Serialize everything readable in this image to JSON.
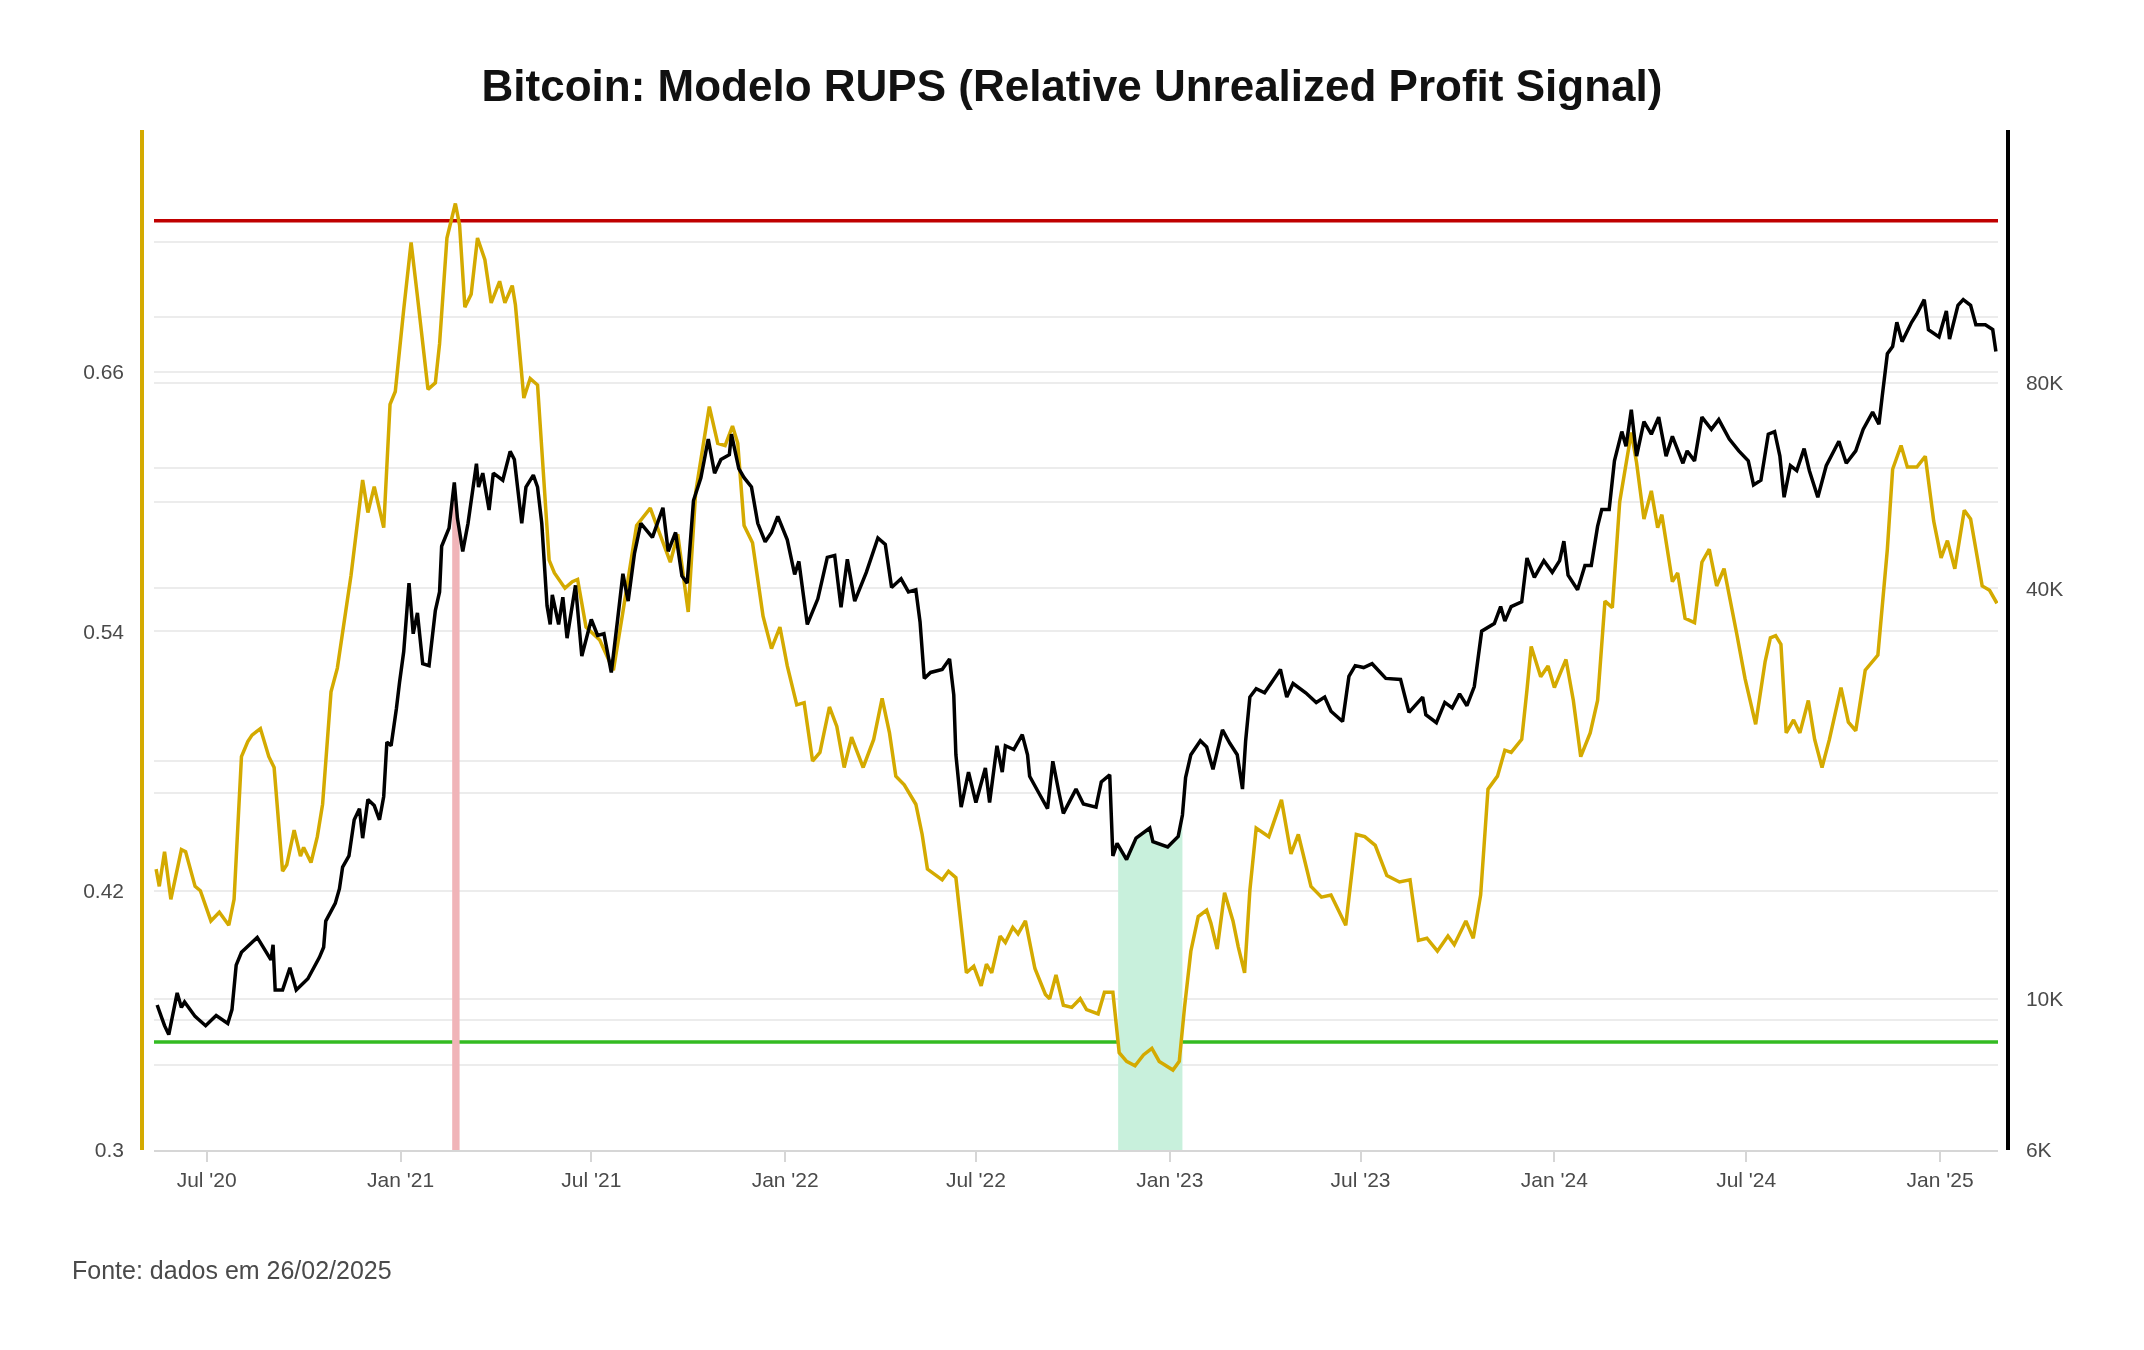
{
  "chart_data": {
    "type": "line",
    "title": "Bitcoin: Modelo RUPS (Relative Unrealized Profit Signal)",
    "annotations": [
      "Fonte: dados em 26/02/2025"
    ],
    "xlim": [
      "2020-05-12",
      "2025-02-25"
    ],
    "xticks": [
      {
        "value": "2020-07-01",
        "label": "Jul '20"
      },
      {
        "value": "2021-01-01",
        "label": "Jan '21"
      },
      {
        "value": "2021-07-01",
        "label": "Jul '21"
      },
      {
        "value": "2022-01-01",
        "label": "Jan '22"
      },
      {
        "value": "2022-07-01",
        "label": "Jul '22"
      },
      {
        "value": "2023-01-01",
        "label": "Jan '23"
      },
      {
        "value": "2023-07-01",
        "label": "Jul '23"
      },
      {
        "value": "2024-01-01",
        "label": "Jan '24"
      },
      {
        "value": "2024-07-01",
        "label": "Jul '24"
      },
      {
        "value": "2025-01-01",
        "label": "Jan '25"
      }
    ],
    "ylim": [
      0.3,
      0.772
    ],
    "yticks": [
      0.3,
      {
        "value": 0.36,
        "label": null
      },
      0.42,
      {
        "value": 0.48,
        "label": null
      },
      0.54,
      {
        "value": 0.6,
        "label": null
      },
      0.66,
      {
        "value": 0.72,
        "label": null
      }
    ],
    "y2lim": [
      6000,
      188000
    ],
    "y2ticks": [
      {
        "value": 6000,
        "label": "6K"
      },
      {
        "value": 8000,
        "label": null
      },
      {
        "value": 10000,
        "label": "10K"
      },
      {
        "value": 20000,
        "label": null
      },
      {
        "value": 40000,
        "label": "40K"
      },
      {
        "value": 60000,
        "label": null
      },
      {
        "value": 80000,
        "label": "80K"
      },
      {
        "value": 100000,
        "label": null
      }
    ],
    "log": "y2",
    "grid": "y",
    "series": [
      {
        "color": "#d4aa00",
        "x": [
          "2020-05-14",
          "2020-05-17",
          "2020-05-22",
          "2020-05-28",
          "2020-06-07",
          "2020-06-11",
          "2020-06-20",
          "2020-06-25",
          "2020-07-05",
          "2020-07-13",
          "2020-07-22",
          "2020-07-27",
          "2020-08-03",
          "2020-08-09",
          "2020-08-13",
          "2020-08-21",
          "2020-08-29",
          "2020-09-03",
          "2020-09-11",
          "2020-09-15",
          "2020-09-22",
          "2020-09-28",
          "2020-10-01",
          "2020-10-08",
          "2020-10-14",
          "2020-10-19",
          "2020-10-27",
          "2020-11-02",
          "2020-11-15",
          "2020-11-26",
          "2020-12-01",
          "2020-12-07",
          "2020-12-16",
          "2020-12-22",
          "2020-12-27",
          "2021-01-04",
          "2021-01-11",
          "2021-01-17",
          "2021-01-27",
          "2021-02-03",
          "2021-02-07",
          "2021-02-14",
          "2021-02-22",
          "2021-02-26",
          "2021-03-03",
          "2021-03-09",
          "2021-03-15",
          "2021-03-22",
          "2021-03-28",
          "2021-04-05",
          "2021-04-10",
          "2021-04-17",
          "2021-04-20",
          "2021-04-28",
          "2021-05-04",
          "2021-05-11",
          "2021-05-22",
          "2021-05-27",
          "2021-06-06",
          "2021-06-13",
          "2021-06-18",
          "2021-06-26",
          "2021-07-09",
          "2021-07-22",
          "2021-07-31",
          "2021-08-13",
          "2021-08-26",
          "2021-09-01",
          "2021-09-14",
          "2021-09-21",
          "2021-10-01",
          "2021-10-08",
          "2021-10-21",
          "2021-10-29",
          "2021-11-05",
          "2021-11-12",
          "2021-11-17",
          "2021-11-23",
          "2021-12-01",
          "2021-12-11",
          "2021-12-19",
          "2021-12-27",
          "2022-01-03",
          "2022-01-12",
          "2022-01-19",
          "2022-01-27",
          "2022-02-03",
          "2022-02-12",
          "2022-02-19",
          "2022-02-26",
          "2022-03-05",
          "2022-03-16",
          "2022-03-26",
          "2022-04-03",
          "2022-04-10",
          "2022-04-16",
          "2022-04-24",
          "2022-05-05",
          "2022-05-11",
          "2022-05-16",
          "2022-05-30",
          "2022-06-05",
          "2022-06-12",
          "2022-06-22",
          "2022-06-29",
          "2022-07-06",
          "2022-07-11",
          "2022-07-16",
          "2022-07-24",
          "2022-07-29",
          "2022-08-05",
          "2022-08-10",
          "2022-08-17",
          "2022-08-26",
          "2022-09-05",
          "2022-09-09",
          "2022-09-15",
          "2022-09-22",
          "2022-09-30",
          "2022-10-08",
          "2022-10-14",
          "2022-10-25",
          "2022-10-31",
          "2022-11-08",
          "2022-11-14",
          "2022-11-21",
          "2022-11-29",
          "2022-12-07",
          "2022-12-15",
          "2022-12-22",
          "2023-01-04",
          "2023-01-10",
          "2023-01-15",
          "2023-01-21",
          "2023-01-28",
          "2023-02-05",
          "2023-02-09",
          "2023-02-15",
          "2023-02-22",
          "2023-03-02",
          "2023-03-07",
          "2023-03-13",
          "2023-03-18",
          "2023-03-24",
          "2023-04-05",
          "2023-04-17",
          "2023-04-26",
          "2023-05-03",
          "2023-05-15",
          "2023-05-25",
          "2023-06-03",
          "2023-06-17",
          "2023-06-27",
          "2023-07-05",
          "2023-07-15",
          "2023-07-26",
          "2023-08-07",
          "2023-08-17",
          "2023-08-25",
          "2023-09-02",
          "2023-09-12",
          "2023-09-22",
          "2023-09-28",
          "2023-10-09",
          "2023-10-16",
          "2023-10-23",
          "2023-10-30",
          "2023-11-08",
          "2023-11-15",
          "2023-11-21",
          "2023-12-01",
          "2023-12-06",
          "2023-12-10",
          "2023-12-19",
          "2023-12-26",
          "2024-01-01",
          "2024-01-12",
          "2024-01-19",
          "2024-01-26",
          "2024-02-04",
          "2024-02-11",
          "2024-02-18",
          "2024-02-25",
          "2024-03-03",
          "2024-03-14",
          "2024-03-19",
          "2024-03-26",
          "2024-04-02",
          "2024-04-08",
          "2024-04-12",
          "2024-04-22",
          "2024-04-27",
          "2024-05-04",
          "2024-05-13",
          "2024-05-20",
          "2024-05-27",
          "2024-06-03",
          "2024-06-10",
          "2024-06-22",
          "2024-06-30",
          "2024-07-10",
          "2024-07-19",
          "2024-07-24",
          "2024-07-29",
          "2024-08-03",
          "2024-08-08",
          "2024-08-15",
          "2024-08-21",
          "2024-08-29",
          "2024-09-04",
          "2024-09-11",
          "2024-09-18",
          "2024-09-29",
          "2024-10-06",
          "2024-10-13",
          "2024-10-22",
          "2024-11-03",
          "2024-11-12",
          "2024-11-17",
          "2024-11-25",
          "2024-12-01",
          "2024-12-10",
          "2024-12-18",
          "2024-12-26",
          "2025-01-02",
          "2025-01-08",
          "2025-01-15",
          "2025-01-24",
          "2025-01-30",
          "2025-02-04",
          "2025-02-10",
          "2025-02-17",
          "2025-02-24"
        ],
        "values": [
          0.43,
          0.422,
          0.438,
          0.416,
          0.439,
          0.438,
          0.422,
          0.42,
          0.406,
          0.41,
          0.404,
          0.416,
          0.482,
          0.489,
          0.492,
          0.495,
          0.482,
          0.477,
          0.429,
          0.432,
          0.448,
          0.436,
          0.44,
          0.433,
          0.445,
          0.46,
          0.512,
          0.523,
          0.566,
          0.61,
          0.595,
          0.607,
          0.588,
          0.645,
          0.651,
          0.689,
          0.72,
          0.695,
          0.652,
          0.655,
          0.673,
          0.722,
          0.738,
          0.728,
          0.69,
          0.696,
          0.722,
          0.712,
          0.692,
          0.702,
          0.692,
          0.7,
          0.691,
          0.648,
          0.657,
          0.654,
          0.573,
          0.567,
          0.56,
          0.563,
          0.564,
          0.542,
          0.536,
          0.522,
          0.549,
          0.589,
          0.597,
          0.589,
          0.572,
          0.585,
          0.549,
          0.604,
          0.644,
          0.627,
          0.626,
          0.635,
          0.627,
          0.589,
          0.581,
          0.547,
          0.532,
          0.542,
          0.524,
          0.506,
          0.507,
          0.48,
          0.484,
          0.505,
          0.496,
          0.477,
          0.491,
          0.477,
          0.49,
          0.509,
          0.493,
          0.473,
          0.469,
          0.46,
          0.446,
          0.43,
          0.425,
          0.429,
          0.426,
          0.382,
          0.385,
          0.376,
          0.386,
          0.382,
          0.399,
          0.396,
          0.403,
          0.4,
          0.406,
          0.384,
          0.372,
          0.37,
          0.381,
          0.367,
          0.366,
          0.37,
          0.365,
          0.363,
          0.373,
          0.373,
          0.345,
          0.341,
          0.339,
          0.344,
          0.347,
          0.341,
          0.337,
          0.341,
          0.366,
          0.392,
          0.408,
          0.411,
          0.405,
          0.393,
          0.419,
          0.406,
          0.394,
          0.382,
          0.42,
          0.449,
          0.445,
          0.462,
          0.437,
          0.446,
          0.422,
          0.417,
          0.418,
          0.404,
          0.446,
          0.445,
          0.441,
          0.427,
          0.424,
          0.425,
          0.397,
          0.398,
          0.392,
          0.399,
          0.395,
          0.406,
          0.398,
          0.418,
          0.467,
          0.473,
          0.485,
          0.484,
          0.49,
          0.513,
          0.533,
          0.519,
          0.524,
          0.514,
          0.527,
          0.508,
          0.482,
          0.493,
          0.508,
          0.554,
          0.551,
          0.6,
          0.632,
          0.618,
          0.592,
          0.605,
          0.588,
          0.594,
          0.563,
          0.567,
          0.546,
          0.544,
          0.572,
          0.578,
          0.561,
          0.569,
          0.539,
          0.518,
          0.497,
          0.526,
          0.537,
          0.538,
          0.534,
          0.493,
          0.499,
          0.493,
          0.508,
          0.49,
          0.477,
          0.49,
          0.514,
          0.498,
          0.494,
          0.522,
          0.529,
          0.578,
          0.615,
          0.626,
          0.616,
          0.616,
          0.621,
          0.591,
          0.574,
          0.582,
          0.569,
          0.596,
          0.592,
          0.578,
          0.561,
          0.559,
          0.553
        ]
      },
      {
        "color": "#000000",
        "axis": "y2",
        "x": [
          "2020-05-15",
          "2020-05-22",
          "2020-05-26",
          "2020-06-03",
          "2020-06-07",
          "2020-06-10",
          "2020-06-20",
          "2020-06-30",
          "2020-07-10",
          "2020-07-21",
          "2020-07-25",
          "2020-07-29",
          "2020-08-03",
          "2020-08-18",
          "2020-08-31",
          "2020-09-02",
          "2020-09-04",
          "2020-09-11",
          "2020-09-18",
          "2020-09-24",
          "2020-10-05",
          "2020-10-16",
          "2020-10-20",
          "2020-10-22",
          "2020-10-31",
          "2020-11-04",
          "2020-11-07",
          "2020-11-13",
          "2020-11-18",
          "2020-11-23",
          "2020-11-26",
          "2020-12-01",
          "2020-12-07",
          "2020-12-12",
          "2020-12-16",
          "2020-12-19",
          "2020-12-23",
          "2020-12-28",
          "2020-12-31",
          "2021-01-04",
          "2021-01-09",
          "2021-01-13",
          "2021-01-17",
          "2021-01-22",
          "2021-01-28",
          "2021-02-03",
          "2021-02-07",
          "2021-02-09",
          "2021-02-16",
          "2021-02-21",
          "2021-02-24",
          "2021-03-01",
          "2021-03-06",
          "2021-03-14",
          "2021-03-16",
          "2021-03-20",
          "2021-03-26",
          "2021-03-30",
          "2021-04-08",
          "2021-04-15",
          "2021-04-19",
          "2021-04-26",
          "2021-04-30",
          "2021-05-07",
          "2021-05-11",
          "2021-05-15",
          "2021-05-20",
          "2021-05-23",
          "2021-05-25",
          "2021-05-31",
          "2021-06-04",
          "2021-06-08",
          "2021-06-16",
          "2021-06-22",
          "2021-07-01",
          "2021-07-07",
          "2021-07-13",
          "2021-07-20",
          "2021-07-26",
          "2021-07-31",
          "2021-08-05",
          "2021-08-11",
          "2021-08-17",
          "2021-08-28",
          "2021-09-07",
          "2021-09-12",
          "2021-09-19",
          "2021-09-25",
          "2021-09-30",
          "2021-10-06",
          "2021-10-13",
          "2021-10-20",
          "2021-10-26",
          "2021-11-01",
          "2021-11-09",
          "2021-11-11",
          "2021-11-18",
          "2021-11-23",
          "2021-11-30",
          "2021-12-06",
          "2021-12-13",
          "2021-12-19",
          "2021-12-25",
          "2022-01-03",
          "2022-01-10",
          "2022-01-14",
          "2022-01-22",
          "2022-02-01",
          "2022-02-10",
          "2022-02-17",
          "2022-02-23",
          "2022-03-01",
          "2022-03-08",
          "2022-03-19",
          "2022-03-30",
          "2022-04-06",
          "2022-04-12",
          "2022-04-21",
          "2022-04-28",
          "2022-05-05",
          "2022-05-09",
          "2022-05-13",
          "2022-05-19",
          "2022-05-30",
          "2022-06-06",
          "2022-06-10",
          "2022-06-12",
          "2022-06-17",
          "2022-06-24",
          "2022-07-01",
          "2022-07-10",
          "2022-07-14",
          "2022-07-21",
          "2022-07-26",
          "2022-07-29",
          "2022-08-06",
          "2022-08-14",
          "2022-08-19",
          "2022-08-21",
          "2022-08-30",
          "2022-09-07",
          "2022-09-12",
          "2022-09-18",
          "2022-09-22",
          "2022-10-04",
          "2022-10-11",
          "2022-10-23",
          "2022-10-28",
          "2022-11-05",
          "2022-11-08",
          "2022-11-12",
          "2022-11-21",
          "2022-11-30",
          "2022-12-13",
          "2022-12-16",
          "2022-12-30",
          "2023-01-09",
          "2023-01-13",
          "2023-01-16",
          "2023-01-21",
          "2023-01-30",
          "2023-02-05",
          "2023-02-11",
          "2023-02-20",
          "2023-02-27",
          "2023-03-06",
          "2023-03-11",
          "2023-03-14",
          "2023-03-18",
          "2023-03-24",
          "2023-04-01",
          "2023-04-16",
          "2023-04-22",
          "2023-04-28",
          "2023-05-10",
          "2023-05-20",
          "2023-05-28",
          "2023-06-03",
          "2023-06-14",
          "2023-06-20",
          "2023-06-26",
          "2023-07-04",
          "2023-07-12",
          "2023-07-25",
          "2023-08-08",
          "2023-08-16",
          "2023-08-29",
          "2023-09-01",
          "2023-09-11",
          "2023-09-19",
          "2023-09-26",
          "2023-10-03",
          "2023-10-10",
          "2023-10-17",
          "2023-10-24",
          "2023-11-05",
          "2023-11-11",
          "2023-11-15",
          "2023-11-21",
          "2023-12-01",
          "2023-12-06",
          "2023-12-13",
          "2023-12-22",
          "2023-12-30",
          "2024-01-06",
          "2024-01-10",
          "2024-01-14",
          "2024-01-23",
          "2024-01-30",
          "2024-02-05",
          "2024-02-11",
          "2024-02-15",
          "2024-02-22",
          "2024-02-27",
          "2024-03-05",
          "2024-03-09",
          "2024-03-14",
          "2024-03-19",
          "2024-03-26",
          "2024-04-02",
          "2024-04-09",
          "2024-04-16",
          "2024-04-22",
          "2024-05-02",
          "2024-05-06",
          "2024-05-13",
          "2024-05-20",
          "2024-05-29",
          "2024-06-05",
          "2024-06-15",
          "2024-06-24",
          "2024-07-03",
          "2024-07-08",
          "2024-07-15",
          "2024-07-22",
          "2024-07-28",
          "2024-08-02",
          "2024-08-06",
          "2024-08-12",
          "2024-08-18",
          "2024-08-25",
          "2024-08-30",
          "2024-09-07",
          "2024-09-15",
          "2024-09-27",
          "2024-10-04",
          "2024-10-13",
          "2024-10-20",
          "2024-10-29",
          "2024-11-04",
          "2024-11-07",
          "2024-11-12",
          "2024-11-17",
          "2024-11-21",
          "2024-11-26",
          "2024-12-05",
          "2024-12-10",
          "2024-12-17",
          "2024-12-21",
          "2024-12-31",
          "2025-01-07",
          "2025-01-10",
          "2025-01-18",
          "2025-01-23",
          "2025-01-30",
          "2025-02-04",
          "2025-02-13",
          "2025-02-20",
          "2025-02-23"
        ],
        "values": [
          9790,
          9130,
          8860,
          10200,
          9710,
          9890,
          9420,
          9130,
          9450,
          9200,
          9640,
          11200,
          11700,
          12300,
          11400,
          12000,
          10300,
          10300,
          11100,
          10300,
          10700,
          11500,
          11900,
          13000,
          13800,
          14500,
          15600,
          16200,
          18300,
          19000,
          17200,
          19600,
          19200,
          18300,
          19800,
          23800,
          23500,
          26600,
          29100,
          32300,
          40700,
          34300,
          36800,
          31000,
          30800,
          37100,
          39500,
          46100,
          49000,
          57200,
          50600,
          45300,
          49800,
          60900,
          56300,
          59000,
          52100,
          59000,
          57600,
          63500,
          61800,
          49800,
          56300,
          58600,
          56300,
          49800,
          37700,
          35400,
          39100,
          35400,
          38800,
          33800,
          40400,
          31800,
          36000,
          34100,
          34300,
          30100,
          36000,
          42000,
          38300,
          45000,
          49800,
          47500,
          52500,
          45300,
          48300,
          41700,
          40700,
          53800,
          58100,
          66200,
          59000,
          61800,
          62800,
          67300,
          59900,
          58100,
          56300,
          49800,
          46800,
          48300,
          51000,
          47100,
          41900,
          43800,
          35400,
          38600,
          44400,
          44700,
          37500,
          44100,
          38300,
          42200,
          47400,
          46400,
          40100,
          41300,
          39500,
          39800,
          35700,
          29500,
          30100,
          30400,
          31500,
          27900,
          22800,
          19100,
          21500,
          19400,
          21800,
          19400,
          23500,
          21500,
          23500,
          23200,
          24400,
          22800,
          21200,
          20000,
          19000,
          22300,
          20000,
          18700,
          20300,
          19300,
          19100,
          20800,
          21300,
          16200,
          16900,
          16000,
          17200,
          17800,
          17000,
          16700,
          17300,
          18600,
          21100,
          22800,
          23900,
          23400,
          21700,
          24800,
          23700,
          22800,
          20300,
          23900,
          27700,
          28500,
          28100,
          30400,
          27700,
          29000,
          28100,
          27200,
          27700,
          26400,
          25500,
          29700,
          30800,
          30600,
          31000,
          29500,
          29400,
          26300,
          27700,
          26100,
          25400,
          27200,
          26700,
          28000,
          26900,
          28700,
          34600,
          35500,
          37600,
          35800,
          37600,
          38200,
          44300,
          41500,
          43900,
          42200,
          43900,
          46900,
          41800,
          39800,
          43200,
          43200,
          49300,
          52200,
          52200,
          61500,
          67900,
          64600,
          73100,
          62500,
          70200,
          67300,
          71300,
          62500,
          66800,
          61000,
          63600,
          61500,
          71300,
          68400,
          70700,
          66200,
          63600,
          61500,
          56700,
          57600,
          67300,
          67900,
          62500,
          54400,
          60500,
          59500,
          64100,
          59500,
          54400,
          60500,
          65700,
          61000,
          63600,
          68400,
          72500,
          69600,
          76200,
          88300,
          90500,
          98200,
          92000,
          98200,
          101000,
          106000,
          95800,
          93500,
          102000,
          92800,
          104000,
          106000,
          104000,
          97400,
          97400,
          95800,
          89000
        ]
      }
    ],
    "ref_lines": [
      {
        "axis": "y",
        "value": 0.73,
        "color": "#c00000"
      },
      {
        "axis": "y",
        "value": 0.35,
        "color": "#33bb22"
      }
    ],
    "bands": [
      {
        "axis": "x",
        "from": "2021-02-19",
        "to": "2021-02-26",
        "color": "#f0b4b8"
      },
      {
        "axis": "x",
        "from": "2022-11-13",
        "to": "2023-01-13",
        "color": "#c8f0dc"
      }
    ]
  }
}
